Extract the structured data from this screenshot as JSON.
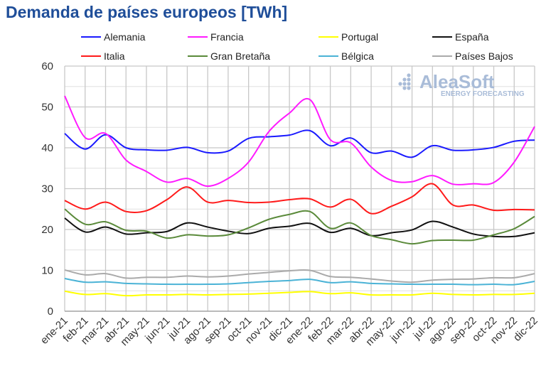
{
  "chart_data": {
    "type": "line",
    "title": "Demanda de países europeos [TWh]",
    "watermark": {
      "name": "AleaSoft",
      "tagline": "ENERGY FORECASTING"
    },
    "xlabel": "",
    "ylabel": "",
    "ylim": [
      0,
      60
    ],
    "yticks": [
      0,
      10,
      20,
      30,
      40,
      50,
      60
    ],
    "grid": true,
    "legend_position": "top",
    "categories": [
      "ene-21",
      "feb-21",
      "mar-21",
      "abr-21",
      "may-21",
      "jun-21",
      "jul-21",
      "ago-21",
      "sep-21",
      "oct-21",
      "nov-21",
      "dic-21",
      "ene-22",
      "feb-22",
      "mar-22",
      "abr-22",
      "may-22",
      "jun-22",
      "jul-22",
      "ago-22",
      "sep-22",
      "oct-22",
      "nov-22",
      "dic-22"
    ],
    "series": [
      {
        "name": "Alemania",
        "color": "#1a1aff",
        "values": [
          43.5,
          39.7,
          43.2,
          40,
          39.5,
          39.4,
          40.1,
          38.8,
          39.2,
          42.3,
          42.7,
          43.1,
          44.2,
          40.5,
          42.4,
          38.8,
          39.2,
          37.7,
          40.5,
          39.4,
          39.5,
          40.1,
          41.6,
          41.9
        ]
      },
      {
        "name": "Francia",
        "color": "#ff1aff",
        "values": [
          52.7,
          42.5,
          43.5,
          37,
          34.2,
          31.6,
          32.5,
          30.6,
          32.5,
          36.5,
          44,
          48.5,
          51.8,
          42,
          41.2,
          35.3,
          32,
          31.7,
          33.2,
          31.1,
          31.2,
          31.5,
          36.5,
          45.2
        ]
      },
      {
        "name": "Portugal",
        "color": "#ffff00",
        "values": [
          4.9,
          4.1,
          4.3,
          3.8,
          4,
          4,
          4.1,
          4,
          4.1,
          4.2,
          4.4,
          4.6,
          4.8,
          4.3,
          4.5,
          4,
          4,
          4,
          4.4,
          4.1,
          4,
          4.1,
          4.1,
          4.4
        ]
      },
      {
        "name": "España",
        "color": "#111111",
        "values": [
          22.8,
          19.4,
          20.6,
          18.9,
          19.2,
          19.5,
          21.6,
          20.6,
          19.6,
          19,
          20.3,
          20.8,
          21.5,
          19.3,
          20.3,
          18.5,
          19.2,
          19.9,
          22,
          20.6,
          18.9,
          18.3,
          18.3,
          19.2
        ]
      },
      {
        "name": "Italia",
        "color": "#ff1a1a",
        "values": [
          27.1,
          25,
          26.7,
          24.4,
          24.6,
          27.3,
          30.4,
          26.7,
          27.1,
          26.6,
          26.7,
          27.3,
          27.5,
          25.5,
          27.4,
          23.9,
          25.7,
          28,
          31.2,
          26,
          26,
          24.7,
          24.9,
          24.8
        ]
      },
      {
        "name": "Gran Bretaña",
        "color": "#5a8a3a",
        "values": [
          25,
          21.3,
          21.9,
          19.8,
          19.6,
          17.9,
          18.7,
          18.4,
          18.7,
          20.4,
          22.5,
          23.7,
          24.4,
          20.3,
          21.6,
          18.5,
          17.5,
          16.5,
          17.3,
          17.4,
          17.4,
          18.7,
          20.2,
          23.2
        ]
      },
      {
        "name": "Bélgica",
        "color": "#4bb3d6",
        "values": [
          8,
          7.1,
          7.2,
          6.8,
          6.7,
          6.6,
          6.6,
          6.6,
          6.7,
          7,
          7.3,
          7.5,
          7.8,
          7,
          7.2,
          6.8,
          6.7,
          6.6,
          6.6,
          6.6,
          6.5,
          6.6,
          6.5,
          7.3
        ]
      },
      {
        "name": "Países Bajos",
        "color": "#aaaaaa",
        "values": [
          10.1,
          8.9,
          9.2,
          8.1,
          8.3,
          8.3,
          8.6,
          8.4,
          8.6,
          9.1,
          9.5,
          9.9,
          10,
          8.5,
          8.3,
          7.9,
          7.4,
          7.1,
          7.6,
          7.8,
          7.9,
          8.2,
          8.2,
          9.2
        ]
      }
    ]
  }
}
